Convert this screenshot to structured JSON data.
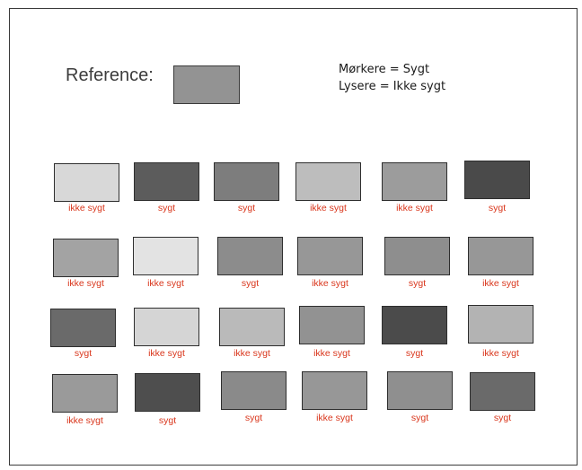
{
  "reference": {
    "label": "Reference:",
    "color": "#939393"
  },
  "legend": {
    "line1": "Mørkere = Sygt",
    "line2": "Lysere = Ikke sygt"
  },
  "samples": [
    [
      {
        "color": "#d8d8d8",
        "label": "ikke sygt"
      },
      {
        "color": "#5c5c5c",
        "label": "sygt"
      },
      {
        "color": "#7d7d7d",
        "label": "sygt"
      },
      {
        "color": "#bdbdbd",
        "label": "ikke sygt"
      },
      {
        "color": "#9c9c9c",
        "label": "ikke sygt"
      },
      {
        "color": "#4a4a4a",
        "label": "sygt"
      }
    ],
    [
      {
        "color": "#a3a3a3",
        "label": "ikke sygt"
      },
      {
        "color": "#e3e3e3",
        "label": "ikke sygt"
      },
      {
        "color": "#8c8c8c",
        "label": "sygt"
      },
      {
        "color": "#979797",
        "label": "ikke sygt"
      },
      {
        "color": "#8e8e8e",
        "label": "sygt"
      },
      {
        "color": "#979797",
        "label": "ikke sygt"
      }
    ],
    [
      {
        "color": "#6a6a6a",
        "label": "sygt"
      },
      {
        "color": "#d5d5d5",
        "label": "ikke sygt"
      },
      {
        "color": "#bababa",
        "label": "ikke sygt"
      },
      {
        "color": "#929292",
        "label": "ikke sygt"
      },
      {
        "color": "#4b4b4b",
        "label": "sygt"
      },
      {
        "color": "#b3b3b3",
        "label": "ikke sygt"
      }
    ],
    [
      {
        "color": "#9a9a9a",
        "label": "ikke sygt"
      },
      {
        "color": "#4e4e4e",
        "label": "sygt"
      },
      {
        "color": "#8a8a8a",
        "label": "sygt"
      },
      {
        "color": "#979797",
        "label": "ikke sygt"
      },
      {
        "color": "#8f8f8f",
        "label": "sygt"
      },
      {
        "color": "#6a6a6a",
        "label": "sygt"
      }
    ]
  ]
}
